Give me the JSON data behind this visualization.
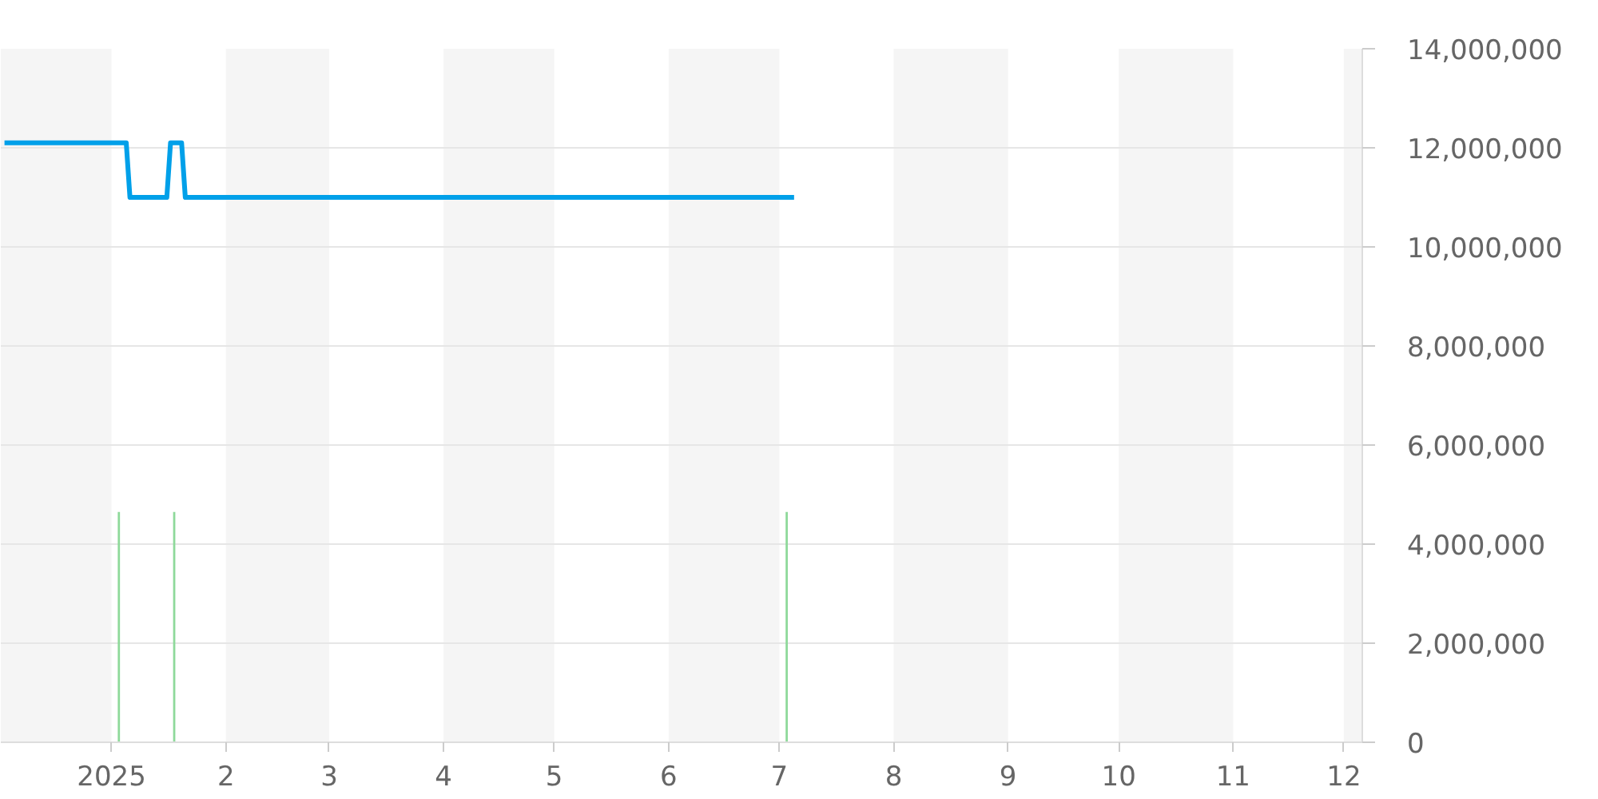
{
  "chart_data": {
    "type": "line",
    "series": [
      {
        "color": "#00a0e9",
        "x": [
          "2024-12-03",
          "2025-01-05",
          "2025-01-06",
          "2025-01-16",
          "2025-01-17",
          "2025-01-20",
          "2025-01-21",
          "2025-07-05"
        ],
        "values": [
          12100000,
          12100000,
          11000000,
          11000000,
          12100000,
          12100000,
          11000000,
          11000000
        ]
      },
      {
        "type": "bar",
        "color": "#8ed99a",
        "x": [
          "2025-01-03",
          "2025-01-18",
          "2025-07-03"
        ],
        "values": [
          4650000,
          4650000,
          4650000
        ]
      }
    ],
    "xlim": [
      "2024-12-02",
      "2025-12-06"
    ],
    "xticks": [
      {
        "value": "2025-01-01",
        "label": "2025"
      },
      {
        "value": "2025-02-01",
        "label": "2"
      },
      {
        "value": "2025-03-01",
        "label": "3"
      },
      {
        "value": "2025-04-01",
        "label": "4"
      },
      {
        "value": "2025-05-01",
        "label": "5"
      },
      {
        "value": "2025-06-01",
        "label": "6"
      },
      {
        "value": "2025-07-01",
        "label": "7"
      },
      {
        "value": "2025-08-01",
        "label": "8"
      },
      {
        "value": "2025-09-01",
        "label": "9"
      },
      {
        "value": "2025-10-01",
        "label": "10"
      },
      {
        "value": "2025-11-01",
        "label": "11"
      },
      {
        "value": "2025-12-01",
        "label": "12"
      }
    ],
    "ylim": [
      0,
      14000000
    ],
    "yticks": [
      0,
      {
        "value": 2000000,
        "label": "2,000,000"
      },
      {
        "value": 4000000,
        "label": "4,000,000"
      },
      {
        "value": 6000000,
        "label": "6,000,000"
      },
      {
        "value": 8000000,
        "label": "8,000,000"
      },
      {
        "value": 10000000,
        "label": "10,000,000"
      },
      {
        "value": 12000000,
        "label": "12,000,000"
      },
      {
        "value": 14000000,
        "label": "14,000,000"
      }
    ],
    "grid": "y",
    "line_style": "solid",
    "bands": [
      {
        "axis": "x",
        "from": "2024-12-02",
        "to": "2025-01-01",
        "color": "#f5f5f5"
      },
      {
        "axis": "x",
        "from": "2025-02-01",
        "to": "2025-03-01",
        "color": "#f5f5f5"
      },
      {
        "axis": "x",
        "from": "2025-04-01",
        "to": "2025-05-01",
        "color": "#f5f5f5"
      },
      {
        "axis": "x",
        "from": "2025-06-01",
        "to": "2025-07-01",
        "color": "#f5f5f5"
      },
      {
        "axis": "x",
        "from": "2025-08-01",
        "to": "2025-09-01",
        "color": "#f5f5f5"
      },
      {
        "axis": "x",
        "from": "2025-10-01",
        "to": "2025-11-01",
        "color": "#f5f5f5"
      },
      {
        "axis": "x",
        "from": "2025-12-01",
        "to": "2025-12-06",
        "color": "#f5f5f5"
      }
    ]
  }
}
